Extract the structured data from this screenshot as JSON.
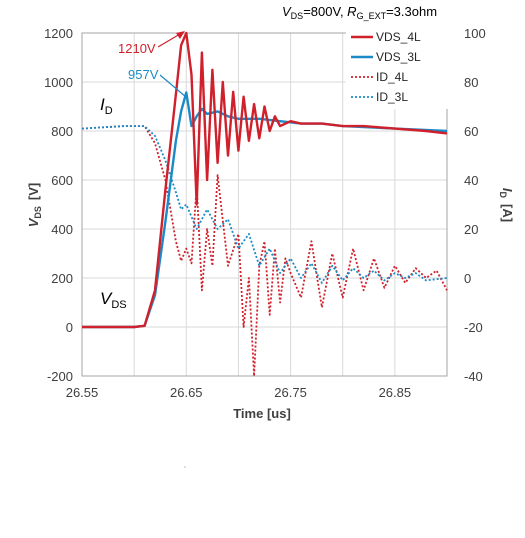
{
  "chart_data": {
    "type": "line",
    "title": "",
    "conditions": {
      "vds_symbol": "V",
      "vds_sub": "DS",
      "vds_value": "=800V, ",
      "rg_symbol": "R",
      "rg_sub": "G_EXT",
      "rg_value": "=3.3ohm"
    },
    "xlabel": "Time [us]",
    "ylabel_left": {
      "symbol": "V",
      "sub": "DS",
      "unit": "[V]"
    },
    "ylabel_right": {
      "symbol": "I",
      "sub": "D",
      "unit": "[A]"
    },
    "xlim": [
      26.55,
      26.9
    ],
    "ylim_left": [
      -200,
      1200
    ],
    "ylim_right": [
      -40,
      100
    ],
    "xticks": [
      "26.55",
      "26.65",
      "26.75",
      "26.85"
    ],
    "xtick_values": [
      26.55,
      26.65,
      26.75,
      26.85
    ],
    "yticks_left": [
      "-200",
      "0",
      "200",
      "400",
      "600",
      "800",
      "1000",
      "1200"
    ],
    "yticks_left_values": [
      -200,
      0,
      200,
      400,
      600,
      800,
      1000,
      1200
    ],
    "yticks_right": [
      "-40",
      "-20",
      "0",
      "20",
      "40",
      "60",
      "80",
      "100"
    ],
    "yticks_right_values": [
      -40,
      -20,
      0,
      20,
      40,
      60,
      80,
      100
    ],
    "grid": true,
    "legend_position": "top-right",
    "annotations": {
      "peak_4l": {
        "text": "1210V",
        "color": "#d0202c"
      },
      "peak_3l": {
        "text": "957V",
        "color": "#1b8ac6"
      },
      "id_label": {
        "symbol": "I",
        "sub": "D"
      },
      "vds_label": {
        "symbol": "V",
        "sub": "DS"
      }
    },
    "colors": {
      "4L": "#d0202c",
      "3L": "#1b8ac6"
    },
    "series": [
      {
        "name": "VDS_4L",
        "axis": "left",
        "style": "solid",
        "color": "#d0202c",
        "x": [
          26.55,
          26.6,
          26.61,
          26.62,
          26.63,
          26.64,
          26.645,
          26.65,
          26.655,
          26.66,
          26.665,
          26.67,
          26.675,
          26.68,
          26.685,
          26.69,
          26.695,
          26.7,
          26.705,
          26.71,
          26.715,
          26.72,
          26.725,
          26.73,
          26.735,
          26.74,
          26.75,
          26.76,
          26.78,
          26.8,
          26.82,
          26.85,
          26.88,
          26.9
        ],
        "y": [
          0,
          0,
          5,
          150,
          560,
          950,
          1150,
          1210,
          1030,
          500,
          1120,
          600,
          1050,
          670,
          1000,
          700,
          960,
          720,
          940,
          760,
          910,
          770,
          900,
          800,
          860,
          820,
          840,
          830,
          830,
          820,
          820,
          810,
          800,
          790
        ]
      },
      {
        "name": "VDS_3L",
        "axis": "left",
        "style": "solid",
        "color": "#1b8ac6",
        "x": [
          26.55,
          26.6,
          26.61,
          26.62,
          26.63,
          26.64,
          26.645,
          26.65,
          26.655,
          26.66,
          26.665,
          26.67,
          26.68,
          26.69,
          26.7,
          26.72,
          26.74,
          26.76,
          26.78,
          26.8,
          26.85,
          26.9
        ],
        "y": [
          0,
          0,
          5,
          130,
          430,
          760,
          880,
          957,
          820,
          860,
          890,
          870,
          880,
          860,
          850,
          850,
          840,
          830,
          830,
          820,
          810,
          800
        ]
      },
      {
        "name": "ID_4L",
        "axis": "right",
        "style": "dotted",
        "color": "#d0202c",
        "x": [
          26.55,
          26.59,
          26.61,
          26.62,
          26.63,
          26.64,
          26.645,
          26.65,
          26.655,
          26.66,
          26.665,
          26.67,
          26.675,
          26.68,
          26.69,
          26.7,
          26.705,
          26.71,
          26.715,
          26.72,
          26.725,
          26.73,
          26.735,
          26.74,
          26.745,
          26.75,
          26.76,
          26.77,
          26.78,
          26.79,
          26.8,
          26.81,
          26.82,
          26.83,
          26.84,
          26.85,
          26.86,
          26.87,
          26.88,
          26.89,
          26.9
        ],
        "y": [
          61,
          62,
          62,
          55,
          40,
          15,
          7,
          12,
          6,
          38,
          -5,
          20,
          5,
          42,
          5,
          18,
          -20,
          0,
          -40,
          5,
          15,
          -15,
          12,
          -10,
          8,
          2,
          -8,
          15,
          -12,
          10,
          -8,
          12,
          -5,
          8,
          -4,
          5,
          -2,
          4,
          0,
          3,
          -5
        ]
      },
      {
        "name": "ID_3L",
        "axis": "right",
        "style": "dotted",
        "color": "#1b8ac6",
        "x": [
          26.55,
          26.59,
          26.61,
          26.62,
          26.63,
          26.64,
          26.645,
          26.65,
          26.66,
          26.67,
          26.68,
          26.69,
          26.7,
          26.71,
          26.72,
          26.73,
          26.74,
          26.75,
          26.76,
          26.77,
          26.78,
          26.79,
          26.8,
          26.81,
          26.82,
          26.83,
          26.84,
          26.85,
          26.86,
          26.87,
          26.88,
          26.9
        ],
        "y": [
          61,
          62,
          62,
          58,
          48,
          35,
          28,
          30,
          20,
          28,
          20,
          24,
          12,
          18,
          5,
          12,
          2,
          8,
          0,
          6,
          -2,
          5,
          -1,
          4,
          0,
          3,
          -1,
          2,
          0,
          2,
          -1,
          0
        ]
      }
    ]
  }
}
